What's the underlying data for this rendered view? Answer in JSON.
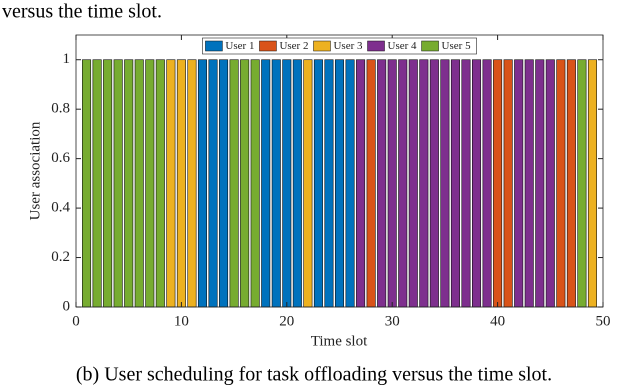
{
  "page_text": "versus the time slot.",
  "caption": "(b) User scheduling for task offloading versus the time slot.",
  "chart_data": {
    "type": "bar",
    "x_label": "Time slot",
    "y_label": "User association",
    "xlim": [
      0,
      50
    ],
    "xticks": [
      0,
      10,
      20,
      30,
      40,
      50
    ],
    "ylim": [
      0,
      1.1
    ],
    "yticks": [
      0,
      0.2,
      0.4,
      0.6,
      0.8,
      1
    ],
    "legend": "top",
    "series": [
      {
        "name": "User 1",
        "color": "#0072bd",
        "x": [
          12,
          13,
          14,
          18,
          19,
          20,
          21,
          23,
          24,
          25,
          26
        ],
        "values": [
          1,
          1,
          1,
          1,
          1,
          1,
          1,
          1,
          1,
          1,
          1
        ]
      },
      {
        "name": "User 2",
        "color": "#d95319",
        "x": [
          28,
          40,
          41,
          46,
          47
        ],
        "values": [
          1,
          1,
          1,
          1,
          1
        ]
      },
      {
        "name": "User 3",
        "color": "#edb120",
        "x": [
          9,
          10,
          11,
          22,
          49
        ],
        "values": [
          1,
          1,
          1,
          1,
          1
        ]
      },
      {
        "name": "User 4",
        "color": "#7e2f8e",
        "x": [
          27,
          29,
          30,
          31,
          32,
          33,
          34,
          35,
          36,
          37,
          38,
          39,
          42,
          43,
          44,
          45
        ],
        "values": [
          1,
          1,
          1,
          1,
          1,
          1,
          1,
          1,
          1,
          1,
          1,
          1,
          1,
          1,
          1,
          1
        ]
      },
      {
        "name": "User 5",
        "color": "#77ac30",
        "x": [
          1,
          2,
          3,
          4,
          5,
          6,
          7,
          8,
          15,
          16,
          17,
          48
        ],
        "values": [
          1,
          1,
          1,
          1,
          1,
          1,
          1,
          1,
          1,
          1,
          1,
          1
        ]
      }
    ]
  }
}
